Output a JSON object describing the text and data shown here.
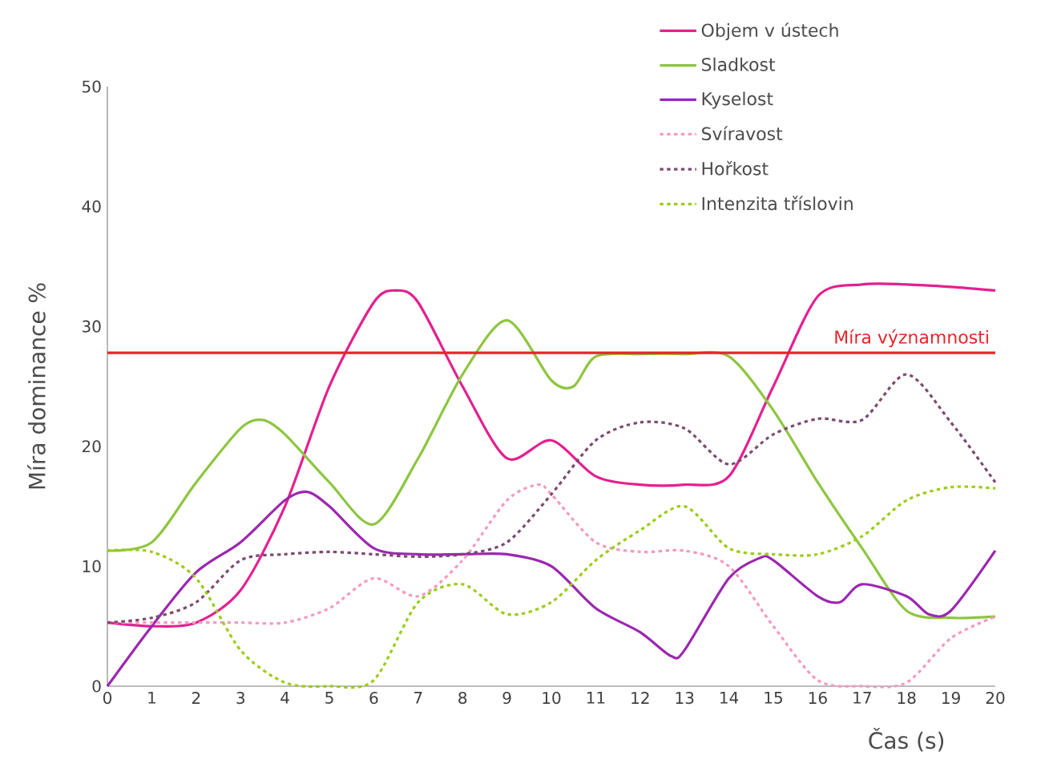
{
  "chart_data": {
    "type": "line",
    "xlabel": "Čas (s)",
    "ylabel": "Míra dominance  %",
    "xlim": [
      0,
      20
    ],
    "ylim": [
      0,
      50
    ],
    "xticks": [
      0,
      1,
      2,
      3,
      4,
      5,
      6,
      7,
      8,
      9,
      10,
      11,
      12,
      13,
      14,
      15,
      16,
      17,
      18,
      19,
      20
    ],
    "yticks": [
      0,
      10,
      20,
      30,
      40,
      50
    ],
    "grid": false,
    "legend": "top right",
    "marker": "none",
    "ref_lines": [
      {
        "axis": "y",
        "value": 27.8,
        "label": "Míra významnosti",
        "color": "#e3262b",
        "line_style": "solid"
      }
    ],
    "series": [
      {
        "name": "Objem v ústech",
        "color": "#e4208f",
        "line_style": "solid",
        "x": [
          0,
          1,
          2,
          3,
          4,
          5,
          6,
          6.5,
          7,
          8,
          9,
          10,
          11,
          12,
          13,
          14,
          15,
          16,
          17,
          18,
          19,
          20
        ],
        "values": [
          5.3,
          5,
          5.3,
          8,
          15,
          25,
          32,
          33,
          32,
          25,
          19,
          20.5,
          17.5,
          16.8,
          16.8,
          17.5,
          25,
          32.5,
          33.5,
          33.5,
          33.3,
          33
        ]
      },
      {
        "name": "Sladkost",
        "color": "#8dc63f",
        "line_style": "solid",
        "x": [
          0,
          1,
          2,
          3,
          3.5,
          4,
          5,
          6,
          7,
          8,
          9,
          10,
          10.5,
          11,
          12,
          13,
          14,
          15,
          16,
          17,
          18,
          19,
          20
        ],
        "values": [
          11.3,
          12,
          17,
          21.5,
          22.2,
          21,
          17,
          13.5,
          19,
          26,
          30.5,
          25.5,
          25,
          27.5,
          27.7,
          27.7,
          27.5,
          23,
          17,
          11.5,
          6.3,
          5.7,
          5.8
        ]
      },
      {
        "name": "Kyselost",
        "color": "#9c27b0",
        "line_style": "solid",
        "x": [
          0,
          1,
          2,
          3,
          4,
          4.5,
          5,
          6,
          7,
          8,
          9,
          10,
          11,
          12,
          12.7,
          13,
          14,
          14.7,
          15,
          16,
          16.5,
          17,
          18,
          18.5,
          19,
          20
        ],
        "values": [
          0,
          5,
          9.5,
          12,
          15.5,
          16.2,
          15,
          11.5,
          11,
          11,
          11,
          10,
          6.5,
          4.5,
          2.5,
          3,
          9,
          10.7,
          10.5,
          7.5,
          7,
          8.5,
          7.5,
          6,
          6.3,
          11.3
        ]
      },
      {
        "name": "Svíravost",
        "color": "#f49ac1",
        "line_style": "dotted",
        "x": [
          0,
          1,
          2,
          3,
          4,
          5,
          6,
          7,
          8,
          9,
          9.7,
          10,
          11,
          12,
          13,
          14,
          15,
          16,
          17,
          18,
          19,
          20
        ],
        "values": [
          5.3,
          5.3,
          5.3,
          5.3,
          5.3,
          6.5,
          9,
          7.5,
          10.5,
          15.5,
          16.8,
          16,
          12,
          11.2,
          11.3,
          10,
          5,
          0.5,
          0,
          0.3,
          4,
          5.8
        ]
      },
      {
        "name": "Hořkost",
        "color": "#7b4a6e",
        "line_style": "dotted",
        "x": [
          0,
          1,
          2,
          3,
          4,
          5,
          6,
          7,
          8,
          9,
          10,
          11,
          12,
          13,
          14,
          15,
          16,
          17,
          18,
          19,
          20
        ],
        "values": [
          5.3,
          5.7,
          7,
          10.5,
          11,
          11.2,
          11,
          10.8,
          11,
          12,
          16,
          20.5,
          22,
          21.5,
          18.5,
          21,
          22.3,
          22.2,
          26,
          22,
          17
        ]
      },
      {
        "name": "Intenzita tříslovin",
        "color": "#9acd17",
        "line_style": "dotted",
        "x": [
          0,
          1,
          2,
          3,
          4,
          5,
          6,
          7,
          8,
          9,
          10,
          11,
          12,
          13,
          14,
          15,
          16,
          17,
          18,
          19,
          20
        ],
        "values": [
          11.3,
          11.2,
          9,
          3,
          0.3,
          0,
          0.5,
          7,
          8.5,
          6,
          7,
          10.5,
          13,
          15,
          11.5,
          11,
          11,
          12.5,
          15.5,
          16.6,
          16.5
        ]
      }
    ]
  }
}
